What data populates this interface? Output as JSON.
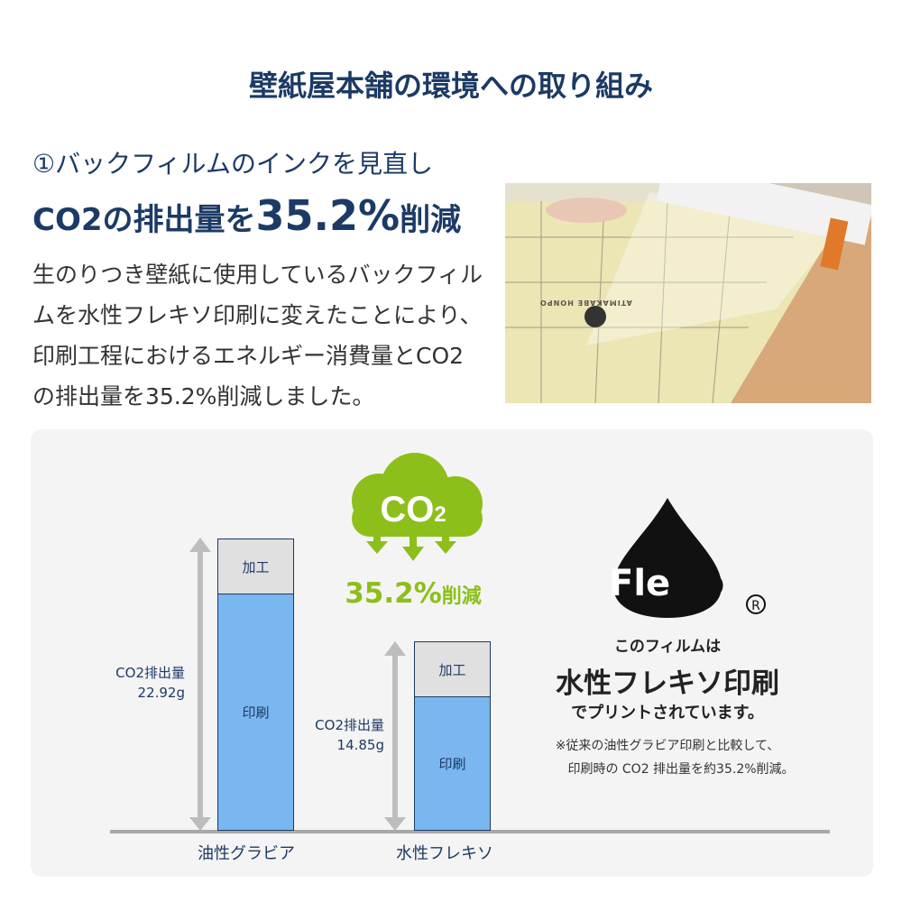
{
  "title": "壁紙屋本舗の環境への取り組み",
  "section": {
    "subtitle": "①バックフィルムのインクを見直し",
    "headline_pre": "CO2の排出量を",
    "headline_value": "35.2%",
    "headline_post": "削減",
    "body": "生のりつき壁紙に使用しているバックフィルムを水性フレキソ印刷に変えたことにより、印刷工程におけるエネルギー消費量とCO2の排出量を35.2%削減しました。"
  },
  "photo": {
    "print_text": "ATIMAKABE HONPO"
  },
  "cloud": {
    "label": "CO2",
    "reduction": "35.2%",
    "reduction_suffix": "削減",
    "color": "#8cbf1a"
  },
  "chart_data": {
    "type": "bar",
    "stacked": true,
    "categories": [
      "油性グラビア",
      "水性フレキソ"
    ],
    "segments": [
      "印刷",
      "加工"
    ],
    "totals": [
      22.92,
      14.85
    ],
    "total_labels": [
      [
        "CO2排出量",
        "22.92g"
      ],
      [
        "CO2排出量",
        "14.85g"
      ]
    ],
    "colors": {
      "印刷": "#7ab6ef",
      "加工": "#e0e0e0"
    }
  },
  "flexo": {
    "logo": "Flexo",
    "registered": "®",
    "line1": "このフィルムは",
    "line2": "水性フレキソ印刷",
    "line3": "でプリントされています。",
    "note1": "※従来の油性グラビア印刷と比較して、",
    "note2": "印刷時の CO2 排出量を約35.2%削減。"
  }
}
